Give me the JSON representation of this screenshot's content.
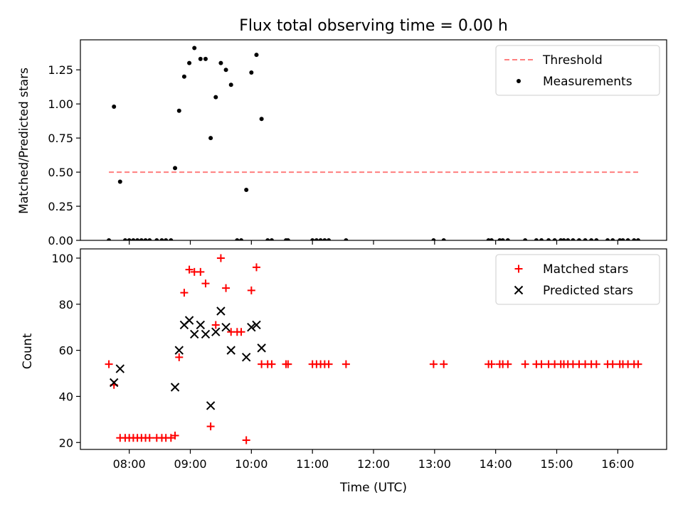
{
  "figure": {
    "title": "Flux total observing time = 0.00 h",
    "xlabel": "Time (UTC)"
  },
  "colors": {
    "matched": "#ff0000",
    "predicted": "#000000",
    "threshold": "#ff7f7f",
    "measurement": "#000000"
  },
  "chart_data": [
    {
      "type": "scatter",
      "ylabel": "Matched/Predicted stars",
      "xlim_hours": [
        7.2,
        16.8
      ],
      "ylim": [
        0,
        1.47
      ],
      "yticks": [
        0.0,
        0.25,
        0.5,
        0.75,
        1.0,
        1.25
      ],
      "ytick_labels": [
        "0.00",
        "0.25",
        "0.50",
        "0.75",
        "1.00",
        "1.25"
      ],
      "legend_position": "top-right",
      "legend": [
        "Threshold",
        "Measurements"
      ],
      "threshold": {
        "value": 0.5,
        "x_from": "07:40",
        "x_to": "16:20",
        "style": "dashed"
      },
      "points": [
        [
          "07:40",
          0.0
        ],
        [
          "07:45",
          0.98
        ],
        [
          "07:51",
          0.43
        ],
        [
          "07:56",
          0.0
        ],
        [
          "08:00",
          0.0
        ],
        [
          "08:04",
          0.0
        ],
        [
          "08:08",
          0.0
        ],
        [
          "08:12",
          0.0
        ],
        [
          "08:16",
          0.0
        ],
        [
          "08:20",
          0.0
        ],
        [
          "08:27",
          0.0
        ],
        [
          "08:32",
          0.0
        ],
        [
          "08:36",
          0.0
        ],
        [
          "08:41",
          0.0
        ],
        [
          "08:45",
          0.53
        ],
        [
          "08:49",
          0.95
        ],
        [
          "08:54",
          1.2
        ],
        [
          "08:59",
          1.3
        ],
        [
          "09:04",
          1.41
        ],
        [
          "09:10",
          1.33
        ],
        [
          "09:15",
          1.33
        ],
        [
          "09:20",
          0.75
        ],
        [
          "09:25",
          1.05
        ],
        [
          "09:30",
          1.3
        ],
        [
          "09:35",
          1.25
        ],
        [
          "09:40",
          1.14
        ],
        [
          "09:46",
          0.0
        ],
        [
          "09:50",
          0.0
        ],
        [
          "09:55",
          0.37
        ],
        [
          "10:00",
          1.23
        ],
        [
          "10:05",
          1.36
        ],
        [
          "10:10",
          0.89
        ],
        [
          "10:16",
          0.0
        ],
        [
          "10:20",
          0.0
        ],
        [
          "10:34",
          0.0
        ],
        [
          "10:36",
          0.0
        ],
        [
          "11:00",
          0.0
        ],
        [
          "11:04",
          0.0
        ],
        [
          "11:08",
          0.0
        ],
        [
          "11:12",
          0.0
        ],
        [
          "11:16",
          0.0
        ],
        [
          "11:33",
          0.0
        ],
        [
          "12:59",
          0.0
        ],
        [
          "13:09",
          0.0
        ],
        [
          "13:53",
          0.0
        ],
        [
          "13:56",
          0.0
        ],
        [
          "14:04",
          0.0
        ],
        [
          "14:07",
          0.0
        ],
        [
          "14:12",
          0.0
        ],
        [
          "14:29",
          0.0
        ],
        [
          "14:40",
          0.0
        ],
        [
          "14:45",
          0.0
        ],
        [
          "14:52",
          0.0
        ],
        [
          "14:58",
          0.0
        ],
        [
          "15:04",
          0.0
        ],
        [
          "15:07",
          0.0
        ],
        [
          "15:11",
          0.0
        ],
        [
          "15:16",
          0.0
        ],
        [
          "15:22",
          0.0
        ],
        [
          "15:28",
          0.0
        ],
        [
          "15:34",
          0.0
        ],
        [
          "15:39",
          0.0
        ],
        [
          "15:50",
          0.0
        ],
        [
          "15:55",
          0.0
        ],
        [
          "16:02",
          0.0
        ],
        [
          "16:05",
          0.0
        ],
        [
          "16:10",
          0.0
        ],
        [
          "16:16",
          0.0
        ],
        [
          "16:20",
          0.0
        ]
      ]
    },
    {
      "type": "scatter",
      "ylabel": "Count",
      "xlim_hours": [
        7.2,
        16.8
      ],
      "ylim": [
        17,
        104
      ],
      "yticks": [
        20,
        40,
        60,
        80,
        100
      ],
      "ytick_labels": [
        "20",
        "40",
        "60",
        "80",
        "100"
      ],
      "xticks": [
        "08:00",
        "09:00",
        "10:00",
        "11:00",
        "12:00",
        "13:00",
        "14:00",
        "15:00",
        "16:00"
      ],
      "legend_position": "top-right",
      "legend": [
        "Matched stars",
        "Predicted stars"
      ],
      "series": [
        {
          "name": "Matched stars",
          "marker": "plus",
          "points": [
            [
              "07:40",
              54
            ],
            [
              "07:45",
              45
            ],
            [
              "07:51",
              22
            ],
            [
              "07:56",
              22
            ],
            [
              "08:00",
              22
            ],
            [
              "08:04",
              22
            ],
            [
              "08:08",
              22
            ],
            [
              "08:12",
              22
            ],
            [
              "08:16",
              22
            ],
            [
              "08:20",
              22
            ],
            [
              "08:27",
              22
            ],
            [
              "08:32",
              22
            ],
            [
              "08:36",
              22
            ],
            [
              "08:41",
              22
            ],
            [
              "08:45",
              23
            ],
            [
              "08:49",
              57
            ],
            [
              "08:54",
              85
            ],
            [
              "08:59",
              95
            ],
            [
              "09:04",
              94
            ],
            [
              "09:10",
              94
            ],
            [
              "09:15",
              89
            ],
            [
              "09:20",
              27
            ],
            [
              "09:25",
              71
            ],
            [
              "09:30",
              100
            ],
            [
              "09:35",
              87
            ],
            [
              "09:40",
              68
            ],
            [
              "09:46",
              68
            ],
            [
              "09:50",
              68
            ],
            [
              "09:55",
              21
            ],
            [
              "10:00",
              86
            ],
            [
              "10:05",
              96
            ],
            [
              "10:10",
              54
            ],
            [
              "10:16",
              54
            ],
            [
              "10:20",
              54
            ],
            [
              "10:34",
              54
            ],
            [
              "10:36",
              54
            ],
            [
              "11:00",
              54
            ],
            [
              "11:04",
              54
            ],
            [
              "11:08",
              54
            ],
            [
              "11:12",
              54
            ],
            [
              "11:16",
              54
            ],
            [
              "11:33",
              54
            ],
            [
              "12:59",
              54
            ],
            [
              "13:09",
              54
            ],
            [
              "13:53",
              54
            ],
            [
              "13:56",
              54
            ],
            [
              "14:04",
              54
            ],
            [
              "14:07",
              54
            ],
            [
              "14:12",
              54
            ],
            [
              "14:29",
              54
            ],
            [
              "14:40",
              54
            ],
            [
              "14:45",
              54
            ],
            [
              "14:52",
              54
            ],
            [
              "14:58",
              54
            ],
            [
              "15:04",
              54
            ],
            [
              "15:07",
              54
            ],
            [
              "15:11",
              54
            ],
            [
              "15:16",
              54
            ],
            [
              "15:22",
              54
            ],
            [
              "15:28",
              54
            ],
            [
              "15:34",
              54
            ],
            [
              "15:39",
              54
            ],
            [
              "15:50",
              54
            ],
            [
              "15:55",
              54
            ],
            [
              "16:02",
              54
            ],
            [
              "16:05",
              54
            ],
            [
              "16:10",
              54
            ],
            [
              "16:16",
              54
            ],
            [
              "16:20",
              54
            ]
          ]
        },
        {
          "name": "Predicted stars",
          "marker": "x",
          "points": [
            [
              "07:45",
              46
            ],
            [
              "07:51",
              52
            ],
            [
              "08:45",
              44
            ],
            [
              "08:49",
              60
            ],
            [
              "08:54",
              71
            ],
            [
              "08:59",
              73
            ],
            [
              "09:04",
              67
            ],
            [
              "09:10",
              71
            ],
            [
              "09:15",
              67
            ],
            [
              "09:20",
              36
            ],
            [
              "09:25",
              68
            ],
            [
              "09:30",
              77
            ],
            [
              "09:35",
              70
            ],
            [
              "09:40",
              60
            ],
            [
              "09:55",
              57
            ],
            [
              "10:00",
              70
            ],
            [
              "10:05",
              71
            ],
            [
              "10:10",
              61
            ]
          ]
        }
      ]
    }
  ]
}
